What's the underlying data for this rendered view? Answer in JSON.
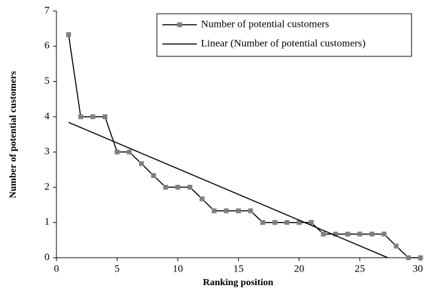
{
  "chart_data": {
    "type": "line",
    "x_label": "Ranking position",
    "y_label": "Number of potential customers",
    "series": [
      {
        "name": "Number of potential customers",
        "color": "#7f7f7f",
        "line_color": "#000000",
        "marker": "square",
        "x": [
          1,
          2,
          3,
          4,
          5,
          6,
          7,
          8,
          9,
          10,
          11,
          12,
          13,
          14,
          15,
          16,
          17,
          18,
          19,
          20,
          21,
          22,
          23,
          24,
          25,
          26,
          27,
          28,
          29,
          30
        ],
        "values": [
          6.33,
          4,
          4,
          4,
          3,
          3,
          2.67,
          2.33,
          2,
          2,
          2,
          1.67,
          1.33,
          1.33,
          1.33,
          1.33,
          1,
          1,
          1,
          1,
          1,
          0.67,
          0.67,
          0.67,
          0.67,
          0.67,
          0.67,
          0.33,
          0,
          0
        ]
      },
      {
        "name": "Linear (Number of potential customers)",
        "color": "#000000",
        "marker": "none",
        "x": [
          1,
          27.3
        ],
        "values": [
          3.84,
          0
        ]
      }
    ],
    "xlim": [
      0,
      30
    ],
    "xticks": [
      0,
      5,
      10,
      15,
      20,
      25,
      30
    ],
    "ylim": [
      0,
      7
    ],
    "yticks": [
      0,
      1,
      2,
      3,
      4,
      5,
      6,
      7
    ],
    "grid": false,
    "legend": "upper right"
  }
}
